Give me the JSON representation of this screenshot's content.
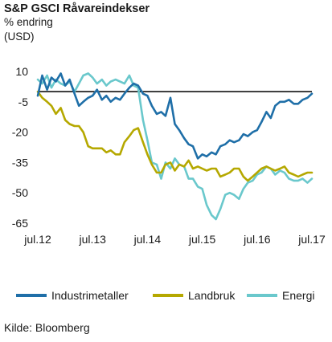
{
  "header": {
    "title": "S&P GSCI Råvareindekser",
    "subtitle1": "% endring",
    "subtitle2": "(USD)"
  },
  "source": "Kilde: Bloomberg",
  "chart_data": {
    "type": "line",
    "ylim": [
      -65,
      10
    ],
    "yticks": [
      "10",
      "-5",
      "-20",
      "-35",
      "-50",
      "-65"
    ],
    "ytick_values": [
      10,
      -5,
      -20,
      -35,
      -50,
      -65
    ],
    "xlim": [
      2012.5,
      2017.5
    ],
    "xticks": [
      "jul.12",
      "jul.13",
      "jul.14",
      "jul.15",
      "jul.16",
      "jul.17"
    ],
    "xtick_values": [
      2012.5,
      2013.5,
      2014.5,
      2015.5,
      2016.5,
      2017.5
    ],
    "zero_line": 0,
    "legend_position": "bottom",
    "series": [
      {
        "name": "Industrimetaller",
        "color": "#1f6fa8",
        "x": [
          2012.5,
          2012.58,
          2012.67,
          2012.75,
          2012.83,
          2012.92,
          2013.0,
          2013.08,
          2013.17,
          2013.25,
          2013.33,
          2013.42,
          2013.5,
          2013.58,
          2013.67,
          2013.75,
          2013.83,
          2013.92,
          2014.0,
          2014.08,
          2014.17,
          2014.25,
          2014.33,
          2014.42,
          2014.5,
          2014.58,
          2014.67,
          2014.75,
          2014.83,
          2014.92,
          2015.0,
          2015.08,
          2015.17,
          2015.25,
          2015.33,
          2015.42,
          2015.5,
          2015.58,
          2015.67,
          2015.75,
          2015.83,
          2015.92,
          2016.0,
          2016.08,
          2016.17,
          2016.25,
          2016.33,
          2016.42,
          2016.5,
          2016.58,
          2016.67,
          2016.75,
          2016.83,
          2016.92,
          2017.0,
          2017.08,
          2017.17,
          2017.25,
          2017.33,
          2017.42,
          2017.5
        ],
        "values": [
          -2,
          8,
          1,
          7,
          5,
          9,
          3,
          6,
          -1,
          -7,
          -5,
          -3,
          -2,
          1,
          -4,
          -2,
          -5,
          -3,
          -4,
          -1,
          2,
          4,
          3,
          -1,
          -2,
          -7,
          -11,
          -10,
          -12,
          -3,
          -16,
          -19,
          -23,
          -26,
          -27,
          -33,
          -31,
          -32,
          -30,
          -31,
          -27,
          -26,
          -24,
          -25,
          -24,
          -21,
          -22,
          -20,
          -19,
          -15,
          -10,
          -13,
          -7,
          -5,
          -5,
          -4,
          -6,
          -6,
          -4,
          -3,
          -1
        ],
        "style": "dense"
      },
      {
        "name": "Landbruk",
        "color": "#b5a800",
        "x": [
          2012.5,
          2012.58,
          2012.67,
          2012.75,
          2012.83,
          2012.92,
          2013.0,
          2013.08,
          2013.17,
          2013.25,
          2013.33,
          2013.42,
          2013.5,
          2013.58,
          2013.67,
          2013.75,
          2013.83,
          2013.92,
          2014.0,
          2014.08,
          2014.17,
          2014.25,
          2014.33,
          2014.42,
          2014.5,
          2014.58,
          2014.67,
          2014.75,
          2014.83,
          2014.92,
          2015.0,
          2015.08,
          2015.17,
          2015.25,
          2015.33,
          2015.42,
          2015.5,
          2015.58,
          2015.67,
          2015.75,
          2015.83,
          2015.92,
          2016.0,
          2016.08,
          2016.17,
          2016.25,
          2016.33,
          2016.42,
          2016.5,
          2016.58,
          2016.67,
          2016.75,
          2016.83,
          2016.92,
          2017.0,
          2017.08,
          2017.17,
          2017.25,
          2017.33,
          2017.42,
          2017.5
        ],
        "values": [
          0,
          -3,
          -5,
          -7,
          -11,
          -8,
          -14,
          -16,
          -17,
          -17,
          -20,
          -27,
          -28,
          -28,
          -28,
          -30,
          -29,
          -31,
          -31,
          -25,
          -22,
          -19,
          -18,
          -25,
          -31,
          -36,
          -40,
          -40,
          -36,
          -35,
          -39,
          -36,
          -37,
          -34,
          -38,
          -37,
          -38,
          -39,
          -38,
          -38,
          -42,
          -41,
          -40,
          -38,
          -38,
          -42,
          -44,
          -42,
          -40,
          -38,
          -37,
          -38,
          -39,
          -38,
          -37,
          -40,
          -41,
          -42,
          -41,
          -40,
          -40
        ],
        "style": "dense"
      },
      {
        "name": "Energi",
        "color": "#6ac8cc",
        "x": [
          2012.5,
          2012.58,
          2012.67,
          2012.75,
          2012.83,
          2012.92,
          2013.0,
          2013.08,
          2013.17,
          2013.25,
          2013.33,
          2013.42,
          2013.5,
          2013.58,
          2013.67,
          2013.75,
          2013.83,
          2013.92,
          2014.0,
          2014.08,
          2014.17,
          2014.25,
          2014.33,
          2014.42,
          2014.5,
          2014.58,
          2014.67,
          2014.75,
          2014.83,
          2014.92,
          2015.0,
          2015.08,
          2015.17,
          2015.25,
          2015.33,
          2015.42,
          2015.5,
          2015.58,
          2015.67,
          2015.75,
          2015.83,
          2015.92,
          2016.0,
          2016.08,
          2016.17,
          2016.25,
          2016.33,
          2016.42,
          2016.5,
          2016.58,
          2016.67,
          2016.75,
          2016.83,
          2016.92,
          2017.0,
          2017.08,
          2017.17,
          2017.25,
          2017.33,
          2017.42,
          2017.5
        ],
        "values": [
          6,
          4,
          8,
          2,
          6,
          4,
          3,
          5,
          0,
          4,
          8,
          9,
          7,
          4,
          6,
          3,
          5,
          6,
          5,
          4,
          8,
          3,
          2,
          -14,
          -24,
          -35,
          -36,
          -43,
          -35,
          -38,
          -33,
          -36,
          -37,
          -43,
          -43,
          -47,
          -48,
          -56,
          -61,
          -63,
          -58,
          -51,
          -50,
          -51,
          -53,
          -48,
          -45,
          -44,
          -41,
          -40,
          -37,
          -38,
          -41,
          -39,
          -40,
          -43,
          -44,
          -44,
          -43,
          -45,
          -43
        ],
        "style": "dense"
      }
    ]
  }
}
